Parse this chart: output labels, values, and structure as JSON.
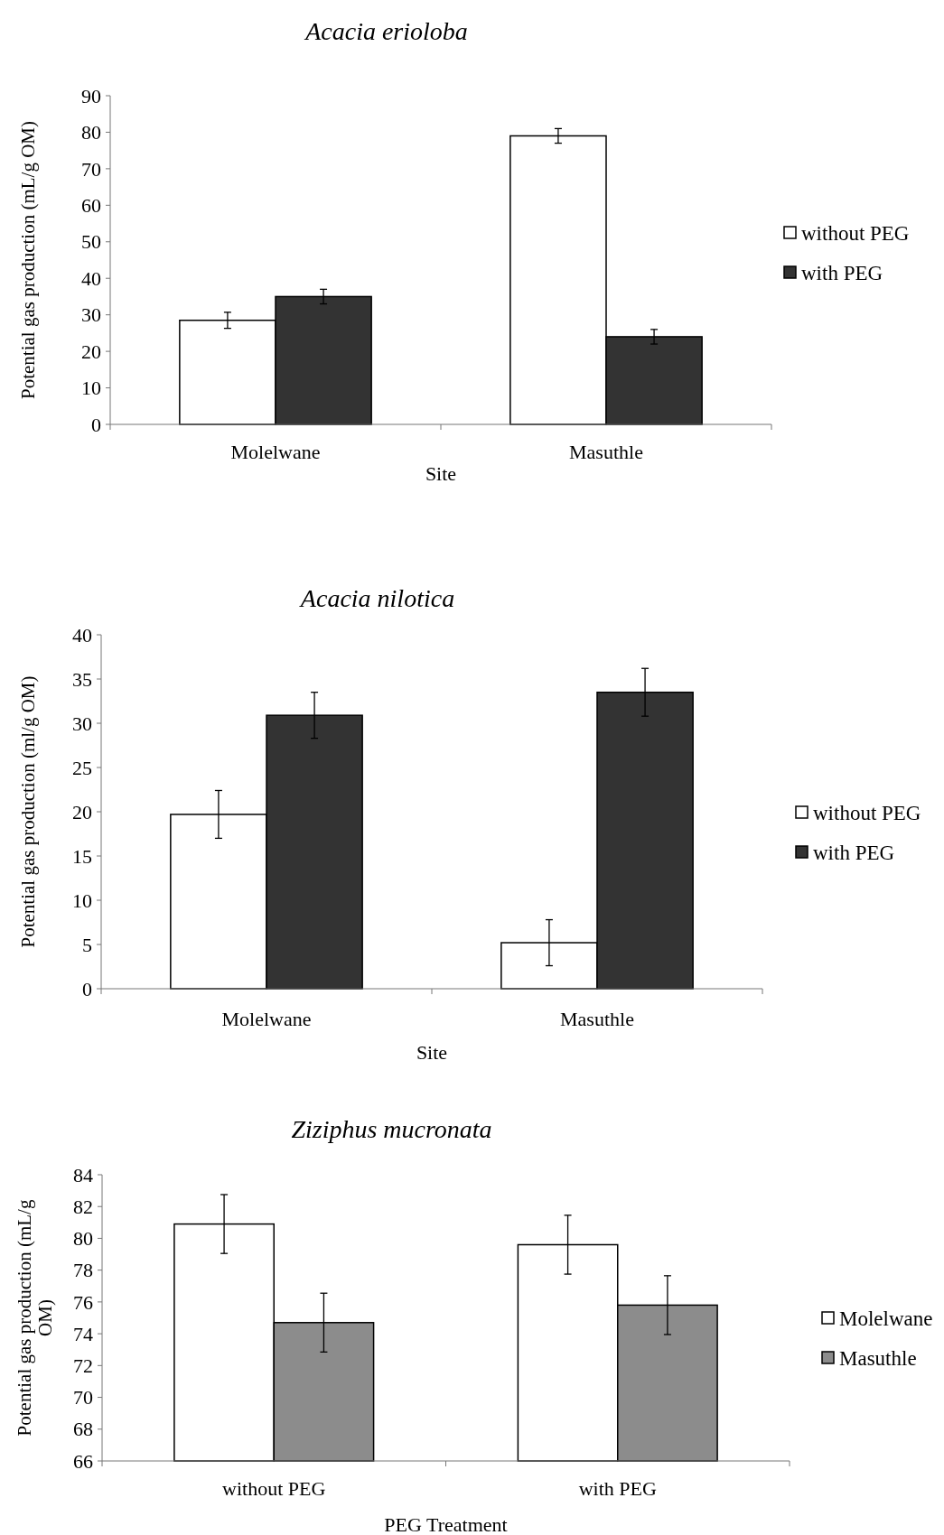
{
  "chart_data": [
    {
      "type": "bar",
      "title": "Acacia erioloba",
      "xlabel": "Site",
      "ylabel": "Potential gas production (mL/g OM)",
      "categories": [
        "Molelwane",
        "Masuthle"
      ],
      "series": [
        {
          "name": "without PEG",
          "color": "#ffffff",
          "values": [
            28.5,
            79
          ],
          "errors": [
            2.2,
            2
          ]
        },
        {
          "name": "with PEG",
          "color": "#333333",
          "values": [
            35,
            24
          ],
          "errors": [
            2,
            2
          ]
        }
      ],
      "ylim": [
        0,
        90
      ],
      "yticks": [
        0,
        10,
        20,
        30,
        40,
        50,
        60,
        70,
        80,
        90
      ],
      "grid": false,
      "legend": "right"
    },
    {
      "type": "bar",
      "title": "Acacia nilotica",
      "xlabel": "Site",
      "ylabel": "Potential gas production  (ml/g OM)",
      "categories": [
        "Molelwane",
        "Masuthle"
      ],
      "series": [
        {
          "name": "without PEG",
          "color": "#ffffff",
          "values": [
            19.7,
            5.2
          ],
          "errors": [
            2.7,
            2.6
          ]
        },
        {
          "name": "with PEG",
          "color": "#333333",
          "values": [
            30.9,
            33.5
          ],
          "errors": [
            2.6,
            2.7
          ]
        }
      ],
      "ylim": [
        0,
        40
      ],
      "yticks": [
        0,
        5,
        10,
        15,
        20,
        25,
        30,
        35,
        40
      ],
      "grid": false,
      "legend": "right"
    },
    {
      "type": "bar",
      "title": "Ziziphus mucronata",
      "xlabel": "PEG Treatment",
      "ylabel": "Potential gas production  (mL/g OM)",
      "categories": [
        "without PEG",
        "with PEG"
      ],
      "series": [
        {
          "name": "Molelwane",
          "color": "#ffffff",
          "values": [
            80.9,
            79.6
          ],
          "errors": [
            1.85,
            1.85
          ]
        },
        {
          "name": "Masuthle",
          "color": "#8c8c8c",
          "values": [
            74.7,
            75.8
          ],
          "errors": [
            1.85,
            1.85
          ]
        }
      ],
      "ylim": [
        66,
        84
      ],
      "yticks": [
        66,
        68,
        70,
        72,
        74,
        76,
        78,
        80,
        82,
        84
      ],
      "grid": false,
      "legend": "right"
    }
  ]
}
